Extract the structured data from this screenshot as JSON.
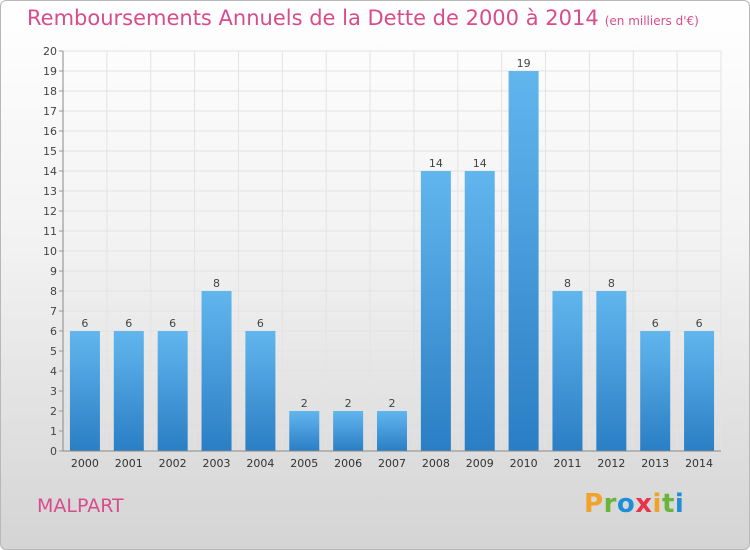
{
  "header": {
    "title": "Remboursements Annuels de la Dette de 2000 à 2014",
    "subtitle": "(en milliers d'€)"
  },
  "footer": {
    "commune": "MALPART",
    "logo_text": "Proxiti"
  },
  "colors": {
    "title": "#d84c8c",
    "bar_top": "#62b6ee",
    "bar_bottom": "#2a7ec4",
    "logo_letters": [
      "#f0a22a",
      "#6bb43a",
      "#1e8fd6",
      "#e8344a",
      "#f0a22a",
      "#6bb43a",
      "#1e8fd6"
    ]
  },
  "chart_data": {
    "type": "bar",
    "title": "Remboursements Annuels de la Dette de 2000 à 2014",
    "categories": [
      "2000",
      "2001",
      "2002",
      "2003",
      "2004",
      "2005",
      "2006",
      "2007",
      "2008",
      "2009",
      "2010",
      "2011",
      "2012",
      "2013",
      "2014"
    ],
    "values": [
      6,
      6,
      6,
      8,
      6,
      2,
      2,
      2,
      14,
      14,
      19,
      8,
      8,
      6,
      6
    ],
    "xlabel": "",
    "ylabel": "",
    "ylim": [
      0,
      20
    ],
    "yticks": [
      "0",
      "1",
      "2",
      "3",
      "4",
      "5",
      "6",
      "7",
      "8",
      "9",
      "10",
      "11",
      "12",
      "13",
      "14",
      "15",
      "16",
      "17",
      "18",
      "19",
      "20"
    ],
    "grid": true,
    "data_labels": true
  }
}
